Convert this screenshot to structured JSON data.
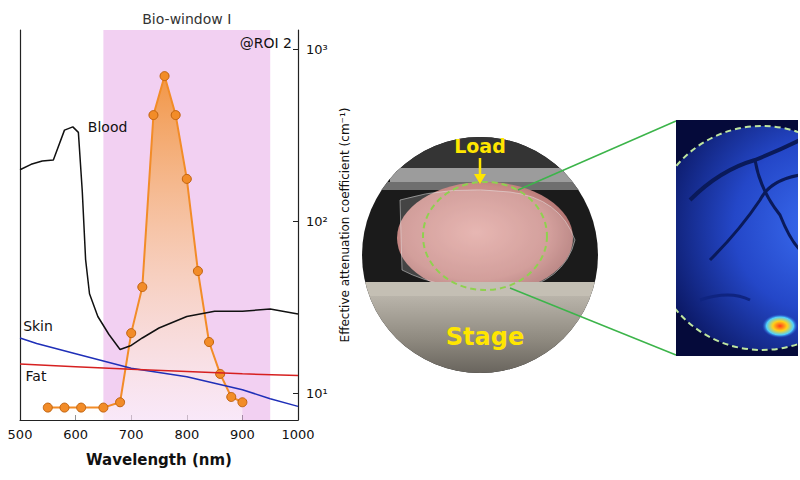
{
  "chart_data": {
    "type": "line",
    "x_label": "Wavelength (nm)",
    "y_label": "Effective attenuation coefficient (cm⁻¹)",
    "xlim": [
      500,
      1000
    ],
    "xticks": [
      500,
      600,
      700,
      800,
      900,
      1000
    ],
    "ylim": [
      7,
      1300
    ],
    "yticks": [
      {
        "value": 10,
        "label": "10¹"
      },
      {
        "value": 100,
        "label": "10²"
      },
      {
        "value": 1000,
        "label": "10³"
      }
    ],
    "log": "y",
    "y2lim": [
      0,
      1.1
    ],
    "grid": false,
    "annotations": [
      {
        "text": "Bio-window I",
        "x": [
          650,
          950
        ]
      },
      {
        "text": "@ROI 2"
      }
    ],
    "series": [
      {
        "name": "Blood",
        "color": "#111111",
        "marker": "none",
        "x": [
          500,
          520,
          540,
          560,
          580,
          595,
          605,
          612,
          618,
          625,
          640,
          660,
          680,
          700,
          720,
          750,
          800,
          850,
          900,
          950,
          1000
        ],
        "values": [
          200,
          215,
          225,
          228,
          340,
          355,
          330,
          150,
          60,
          38,
          28,
          22,
          18,
          19,
          21,
          24,
          28,
          30,
          30,
          31,
          29
        ]
      },
      {
        "name": "Skin",
        "color": "#1f2fb8",
        "marker": "none",
        "x": [
          500,
          530,
          600,
          700,
          800,
          900,
          950,
          1000
        ],
        "values": [
          21,
          19.5,
          17,
          14,
          12.5,
          10.5,
          9.3,
          8.4
        ]
      },
      {
        "name": "Fat",
        "color": "#d62020",
        "marker": "none",
        "x": [
          500,
          600,
          700,
          800,
          900,
          1000
        ],
        "values": [
          14.8,
          14.3,
          13.8,
          13.4,
          13,
          12.7
        ]
      },
      {
        "type": "area",
        "color": "#f28c28",
        "marker": "circle",
        "axis": "y2",
        "x": [
          550,
          580,
          610,
          650,
          680,
          700,
          720,
          740,
          760,
          780,
          800,
          820,
          840,
          860,
          880,
          900
        ],
        "values": [
          0.035,
          0.035,
          0.035,
          0.035,
          0.05,
          0.245,
          0.375,
          0.86,
          0.97,
          0.86,
          0.68,
          0.42,
          0.22,
          0.13,
          0.065,
          0.05
        ]
      }
    ]
  },
  "photo": {
    "labels": [
      "Load",
      "Stage"
    ]
  }
}
